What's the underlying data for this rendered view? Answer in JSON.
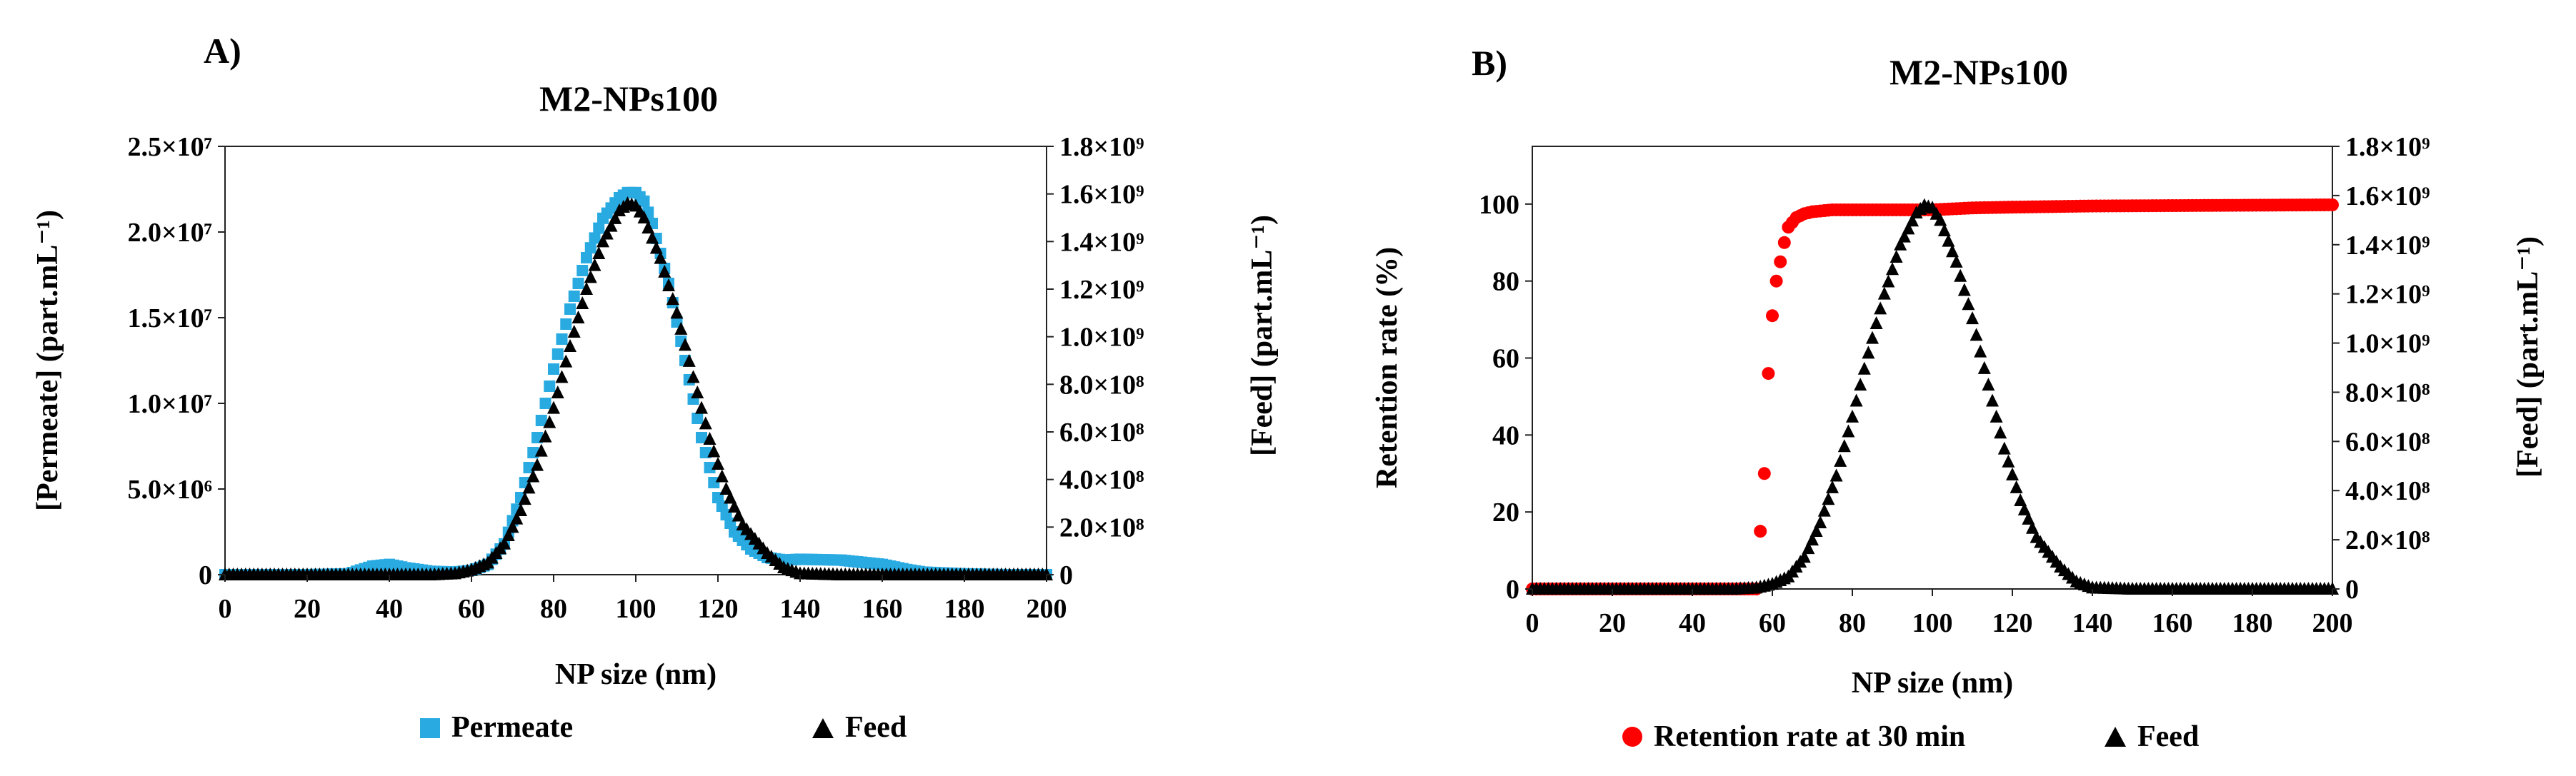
{
  "chart_data": [
    {
      "panel": "A)",
      "type": "scatter",
      "title": "M2-NPs100",
      "xlabel": "NP size (nm)",
      "ylabel": "[Permeate] (part.mL⁻¹)",
      "y2label": "[Feed] (part.mL⁻¹)",
      "xlim": [
        0,
        200
      ],
      "ylim": [
        0,
        25000000
      ],
      "y2lim": [
        0,
        1800000000
      ],
      "x_ticks": [
        "0",
        "20",
        "40",
        "60",
        "80",
        "100",
        "120",
        "140",
        "160",
        "180",
        "200"
      ],
      "y_ticks": [
        "0",
        "5.0×10⁶",
        "1.0×10⁷",
        "1.5×10⁷",
        "2.0×10⁷",
        "2.5×10⁷"
      ],
      "y2_ticks": [
        "0",
        "2.0×10⁸",
        "4.0×10⁸",
        "6.0×10⁸",
        "8.0×10⁸",
        "1.0×10⁹",
        "1.2×10⁹",
        "1.4×10⁹",
        "1.6×10⁹",
        "1.8×10⁹"
      ],
      "legend_position": "bottom",
      "series": [
        {
          "name": "Permeate",
          "axis": "left",
          "marker": "square",
          "color": "#29abe2",
          "points": [
            [
              0,
              0
            ],
            [
              10,
              0
            ],
            [
              20,
              0
            ],
            [
              30,
              50000
            ],
            [
              36,
              500000
            ],
            [
              40,
              600000
            ],
            [
              44,
              400000
            ],
            [
              50,
              200000
            ],
            [
              56,
              150000
            ],
            [
              60,
              250000
            ],
            [
              64,
              600000
            ],
            [
              68,
              1800000
            ],
            [
              72,
              4500000
            ],
            [
              76,
              8000000
            ],
            [
              80,
              12000000
            ],
            [
              84,
              15500000
            ],
            [
              88,
              18500000
            ],
            [
              92,
              20800000
            ],
            [
              96,
              22000000
            ],
            [
              98,
              22300000
            ],
            [
              100,
              22300000
            ],
            [
              102,
              21800000
            ],
            [
              104,
              20500000
            ],
            [
              108,
              17000000
            ],
            [
              112,
              12500000
            ],
            [
              116,
              8000000
            ],
            [
              120,
              4500000
            ],
            [
              124,
              2500000
            ],
            [
              128,
              1500000
            ],
            [
              132,
              1000000
            ],
            [
              136,
              850000
            ],
            [
              140,
              900000
            ],
            [
              150,
              850000
            ],
            [
              160,
              600000
            ],
            [
              166,
              300000
            ],
            [
              170,
              150000
            ],
            [
              180,
              50000
            ],
            [
              190,
              0
            ],
            [
              200,
              0
            ]
          ]
        },
        {
          "name": "Feed",
          "axis": "right",
          "marker": "triangle",
          "color": "#000000",
          "points": [
            [
              0,
              0
            ],
            [
              20,
              0
            ],
            [
              40,
              0
            ],
            [
              50,
              0
            ],
            [
              56,
              5000000
            ],
            [
              60,
              20000000
            ],
            [
              64,
              50000000
            ],
            [
              68,
              130000000
            ],
            [
              72,
              270000000
            ],
            [
              76,
              460000000
            ],
            [
              80,
              700000000
            ],
            [
              84,
              960000000
            ],
            [
              88,
              1200000000
            ],
            [
              92,
              1400000000
            ],
            [
              96,
              1530000000
            ],
            [
              98,
              1560000000
            ],
            [
              100,
              1550000000
            ],
            [
              102,
              1500000000
            ],
            [
              106,
              1330000000
            ],
            [
              110,
              1100000000
            ],
            [
              114,
              830000000
            ],
            [
              118,
              570000000
            ],
            [
              122,
              360000000
            ],
            [
              126,
              210000000
            ],
            [
              128,
              170000000
            ],
            [
              132,
              90000000
            ],
            [
              136,
              30000000
            ],
            [
              140,
              5000000
            ],
            [
              150,
              0
            ],
            [
              170,
              0
            ],
            [
              200,
              0
            ]
          ]
        }
      ]
    },
    {
      "panel": "B)",
      "type": "scatter",
      "title": "M2-NPs100",
      "xlabel": "NP size (nm)",
      "ylabel": "Retention rate (%)",
      "y2label": "[Feed] (part.mL⁻¹)",
      "xlim": [
        0,
        200
      ],
      "ylim": [
        0,
        115
      ],
      "y2lim": [
        0,
        1800000000
      ],
      "x_ticks": [
        "0",
        "20",
        "40",
        "60",
        "80",
        "100",
        "120",
        "140",
        "160",
        "180",
        "200"
      ],
      "y_ticks": [
        "0",
        "20",
        "40",
        "60",
        "80",
        "100"
      ],
      "y2_ticks": [
        "0",
        "2.0×10⁸",
        "4.0×10⁸",
        "6.0×10⁸",
        "8.0×10⁸",
        "1.0×10⁹",
        "1.2×10⁹",
        "1.4×10⁹",
        "1.6×10⁹",
        "1.8×10⁹"
      ],
      "legend_position": "bottom",
      "series": [
        {
          "name": "Retention rate at 30 min",
          "axis": "left",
          "marker": "circle",
          "color": "#ff0000",
          "points": [
            [
              0,
              0
            ],
            [
              20,
              0
            ],
            [
              40,
              0
            ],
            [
              50,
              0
            ],
            [
              56,
              0
            ],
            [
              58,
              30
            ],
            [
              59,
              56
            ],
            [
              60,
              71
            ],
            [
              61,
              80
            ],
            [
              62,
              85
            ],
            [
              63,
              90
            ],
            [
              64,
              94
            ],
            [
              66,
              96.5
            ],
            [
              68,
              97.5
            ],
            [
              70,
              98
            ],
            [
              75,
              98.5
            ],
            [
              80,
              98.5
            ],
            [
              90,
              98.5
            ],
            [
              100,
              98.5
            ],
            [
              110,
              99
            ],
            [
              120,
              99.2
            ],
            [
              140,
              99.5
            ],
            [
              160,
              99.6
            ],
            [
              180,
              99.7
            ],
            [
              200,
              99.8
            ]
          ]
        },
        {
          "name": "Feed",
          "axis": "right",
          "marker": "triangle",
          "color": "#000000",
          "points": [
            [
              0,
              0
            ],
            [
              20,
              0
            ],
            [
              40,
              0
            ],
            [
              50,
              0
            ],
            [
              56,
              5000000
            ],
            [
              60,
              20000000
            ],
            [
              64,
              50000000
            ],
            [
              68,
              130000000
            ],
            [
              72,
              270000000
            ],
            [
              76,
              460000000
            ],
            [
              80,
              700000000
            ],
            [
              84,
              960000000
            ],
            [
              88,
              1200000000
            ],
            [
              92,
              1400000000
            ],
            [
              96,
              1530000000
            ],
            [
              98,
              1560000000
            ],
            [
              100,
              1550000000
            ],
            [
              102,
              1500000000
            ],
            [
              106,
              1330000000
            ],
            [
              110,
              1100000000
            ],
            [
              114,
              830000000
            ],
            [
              118,
              570000000
            ],
            [
              122,
              360000000
            ],
            [
              126,
              210000000
            ],
            [
              128,
              170000000
            ],
            [
              132,
              90000000
            ],
            [
              136,
              30000000
            ],
            [
              140,
              5000000
            ],
            [
              150,
              0
            ],
            [
              170,
              0
            ],
            [
              200,
              0
            ]
          ]
        }
      ]
    }
  ]
}
